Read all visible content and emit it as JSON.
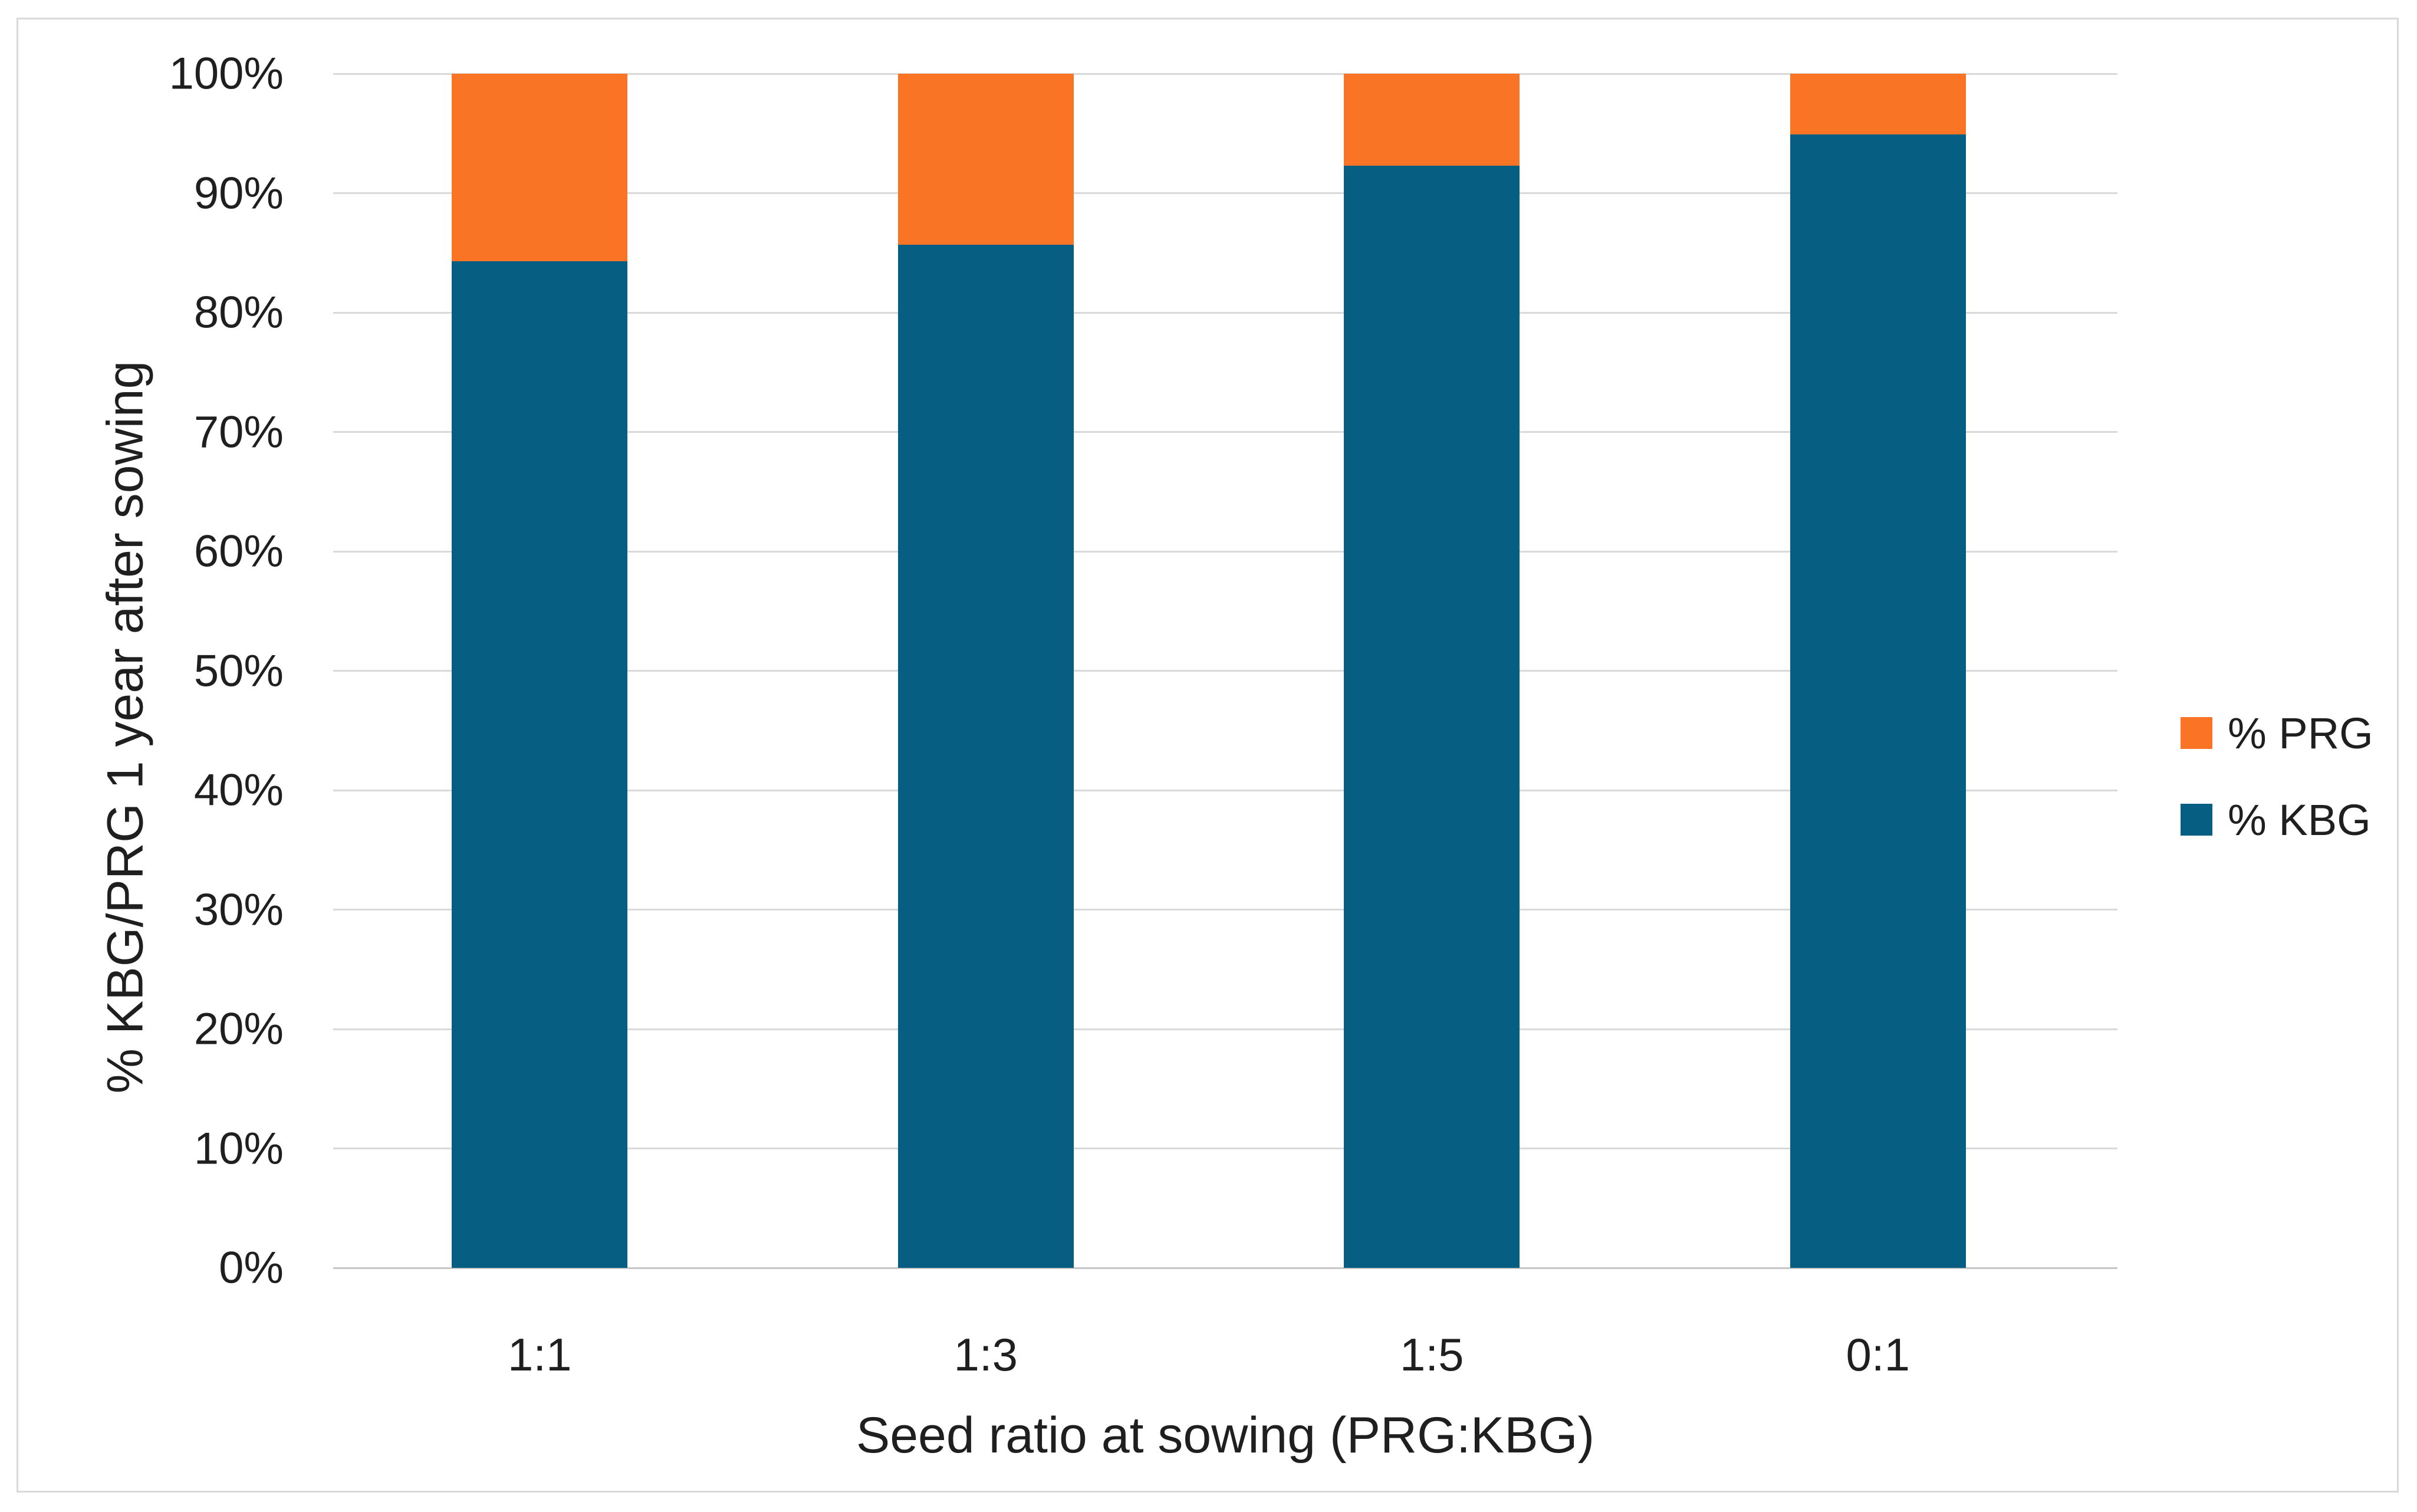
{
  "chart_data": {
    "type": "bar",
    "variant": "100-percent-stacked-column",
    "categories": [
      "1:1",
      "1:3",
      "1:5",
      "0:1"
    ],
    "series": [
      {
        "name": "% KBG",
        "color": "#065F83",
        "values": [
          84.3,
          85.7,
          92.3,
          94.9
        ]
      },
      {
        "name": "% PRG",
        "color": "#FA7426",
        "values": [
          15.7,
          14.3,
          7.7,
          5.1
        ]
      }
    ],
    "stack_order_bottom_to_top": [
      "% KBG",
      "% PRG"
    ],
    "title": "",
    "xlabel": "Seed ratio at sowing (PRG:KBG)",
    "ylabel": "% KBG/PRG 1 year after sowing",
    "ylim": [
      0,
      100
    ],
    "ytick_labels": [
      "0%",
      "10%",
      "20%",
      "30%",
      "40%",
      "50%",
      "60%",
      "70%",
      "80%",
      "90%",
      "100%"
    ],
    "grid": true,
    "legend": {
      "position": "right",
      "entries": [
        "% PRG",
        "% KBG"
      ]
    }
  },
  "colors": {
    "background": "#FFFFFF",
    "frame_border": "#D9D9D9",
    "gridline": "#D9D9D9",
    "axis_line": "#C6C6C6",
    "text": "#1F1F1F"
  }
}
